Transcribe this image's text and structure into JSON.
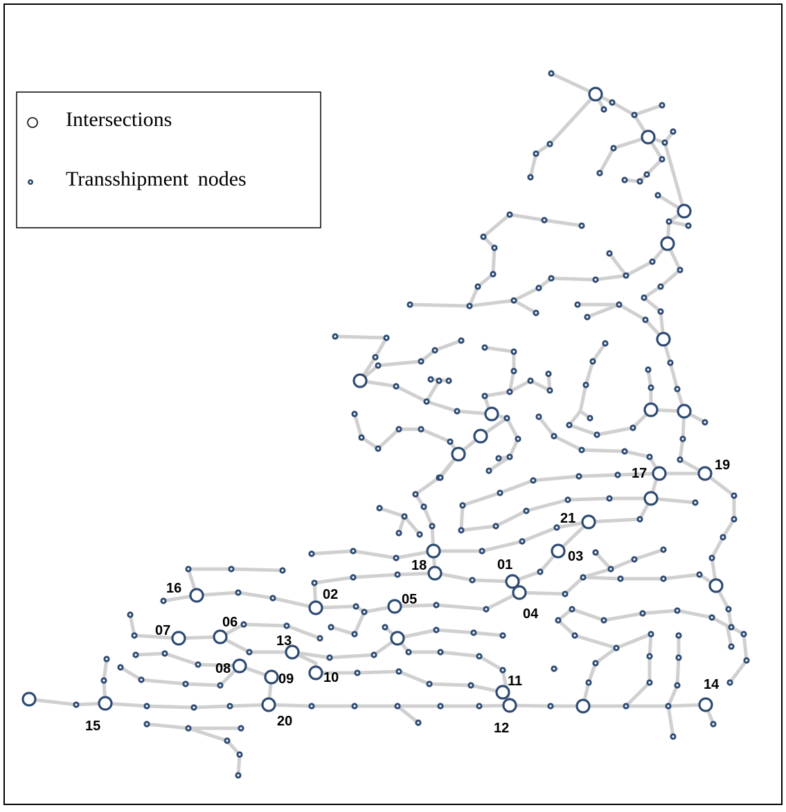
{
  "legend": {
    "items": [
      {
        "label": "Intersections",
        "icon": "open-circle-icon"
      },
      {
        "label": "Transshipment nodes",
        "icon": "small-dot-icon"
      }
    ]
  },
  "colors": {
    "edge": "#d0d0d0",
    "node": "#2d4a73",
    "border": "#000000"
  },
  "node_labels": [
    "01",
    "02",
    "03",
    "04",
    "05",
    "06",
    "07",
    "08",
    "09",
    "10",
    "11",
    "12",
    "13",
    "14",
    "15",
    "16",
    "17",
    "18",
    "19",
    "20",
    "21"
  ]
}
